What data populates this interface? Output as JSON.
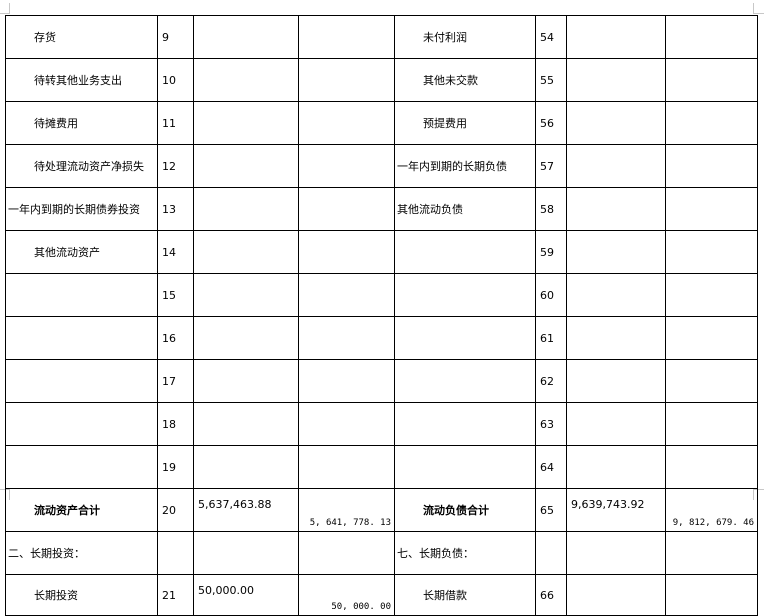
{
  "rows": [
    {
      "left_item": "存货",
      "left_no": "9",
      "left_begin": "",
      "left_end": "",
      "right_item": "未付利润",
      "right_no": "54",
      "right_begin": "",
      "right_end": ""
    },
    {
      "left_item": "待转其他业务支出",
      "left_no": "10",
      "left_begin": "",
      "left_end": "",
      "right_item": "其他未交款",
      "right_no": "55",
      "right_begin": "",
      "right_end": ""
    },
    {
      "left_item": "待摊费用",
      "left_no": "11",
      "left_begin": "",
      "left_end": "",
      "right_item": "预提费用",
      "right_no": "56",
      "right_begin": "",
      "right_end": ""
    },
    {
      "left_item": "待处理流动资产净损失",
      "left_no": "12",
      "left_begin": "",
      "left_end": "",
      "right_item": "一年内到期的长期负债",
      "right_no": "57",
      "right_begin": "",
      "right_end": ""
    },
    {
      "left_item": "一年内到期的长期债券投资",
      "left_no": "13",
      "left_begin": "",
      "left_end": "",
      "right_item": "其他流动负债",
      "right_no": "58",
      "right_begin": "",
      "right_end": ""
    },
    {
      "left_item": "其他流动资产",
      "left_no": "14",
      "left_begin": "",
      "left_end": "",
      "right_item": "",
      "right_no": "59",
      "right_begin": "",
      "right_end": ""
    },
    {
      "left_item": "",
      "left_no": "15",
      "left_begin": "",
      "left_end": "",
      "right_item": "",
      "right_no": "60",
      "right_begin": "",
      "right_end": ""
    },
    {
      "left_item": "",
      "left_no": "16",
      "left_begin": "",
      "left_end": "",
      "right_item": "",
      "right_no": "61",
      "right_begin": "",
      "right_end": ""
    },
    {
      "left_item": "",
      "left_no": "17",
      "left_begin": "",
      "left_end": "",
      "right_item": "",
      "right_no": "62",
      "right_begin": "",
      "right_end": ""
    },
    {
      "left_item": "",
      "left_no": "18",
      "left_begin": "",
      "left_end": "",
      "right_item": "",
      "right_no": "63",
      "right_begin": "",
      "right_end": ""
    },
    {
      "left_item": "",
      "left_no": "19",
      "left_begin": "",
      "left_end": "",
      "right_item": "",
      "right_no": "64",
      "right_begin": "",
      "right_end": ""
    },
    {
      "left_item": "流动资产合计",
      "left_no": "20",
      "left_begin": "5,637,463.88",
      "left_end": "5, 641, 778. 13",
      "right_item": "流动负债合计",
      "right_no": "65",
      "right_begin": "9,639,743.92",
      "right_end": "9, 812, 679. 46"
    },
    {
      "left_item": "二、长期投资：",
      "left_no": "",
      "left_begin": "",
      "left_end": "",
      "right_item": "七、长期负债：",
      "right_no": "",
      "right_begin": "",
      "right_end": ""
    },
    {
      "left_item": "长期投资",
      "left_no": "21",
      "left_begin": "50,000.00",
      "left_end": "50, 000. 00",
      "right_item": "长期借款",
      "right_no": "66",
      "right_begin": "",
      "right_end": ""
    }
  ]
}
